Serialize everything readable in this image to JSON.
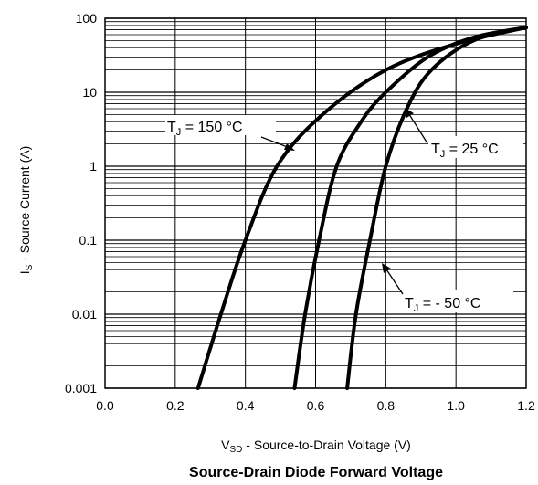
{
  "chart_data": {
    "type": "line",
    "title": "Source-Drain Diode Forward Voltage",
    "xlabel": {
      "main": "V",
      "sub": "SD",
      "rest": " - Source-to-Drain Voltage (V)"
    },
    "ylabel": {
      "main": "I",
      "sub": "S",
      "rest": " - Source Current (A)"
    },
    "xlim": [
      0.0,
      1.2
    ],
    "ylim": [
      0.001,
      100
    ],
    "y_scale": "log",
    "grid": true,
    "x_ticks": [
      "0.0",
      "0.2",
      "0.4",
      "0.6",
      "0.8",
      "1.0",
      "1.2"
    ],
    "y_ticks": [
      "0.001",
      "0.01",
      "0.1",
      "1",
      "10",
      "100"
    ],
    "series": [
      {
        "name": "T_J = 150 °C",
        "points": [
          [
            0.265,
            0.001
          ],
          [
            0.33,
            0.01
          ],
          [
            0.4,
            0.1
          ],
          [
            0.49,
            1
          ],
          [
            0.62,
            5
          ],
          [
            0.8,
            20
          ],
          [
            1.0,
            45
          ],
          [
            1.2,
            75
          ]
        ]
      },
      {
        "name": "T_J = 25 °C",
        "points": [
          [
            0.54,
            0.001
          ],
          [
            0.57,
            0.01
          ],
          [
            0.61,
            0.1
          ],
          [
            0.66,
            1
          ],
          [
            0.73,
            4
          ],
          [
            0.8,
            10
          ],
          [
            0.92,
            30
          ],
          [
            1.05,
            55
          ],
          [
            1.2,
            75
          ]
        ]
      },
      {
        "name": "T_J = - 50 °C",
        "points": [
          [
            0.69,
            0.001
          ],
          [
            0.715,
            0.01
          ],
          [
            0.755,
            0.1
          ],
          [
            0.8,
            1
          ],
          [
            0.86,
            6
          ],
          [
            0.93,
            20
          ],
          [
            1.05,
            50
          ],
          [
            1.2,
            75
          ]
        ]
      }
    ],
    "annotations": [
      {
        "main": "T",
        "sub": "J",
        "rest": " = 150 °C"
      },
      {
        "main": "T",
        "sub": "J",
        "rest": " = 25 °C"
      },
      {
        "main": "T",
        "sub": "J",
        "rest": " = - 50 °C"
      }
    ]
  }
}
